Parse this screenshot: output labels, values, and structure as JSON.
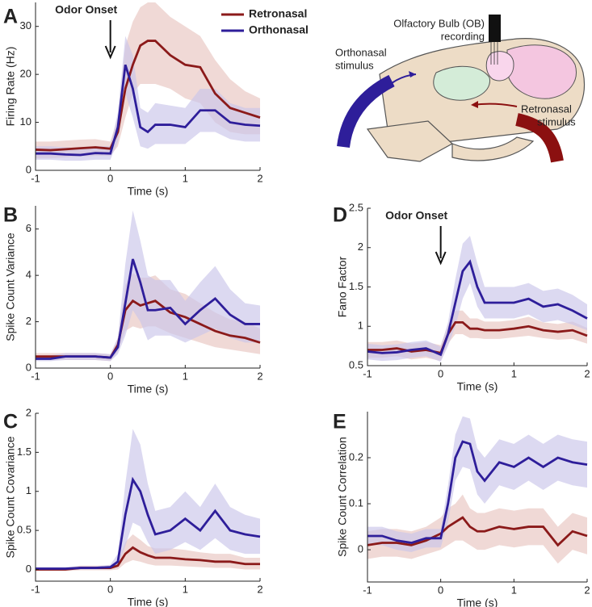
{
  "chart_data": [
    {
      "type": "line",
      "panel_label": "A",
      "ylabel": "Firing Rate (Hz)",
      "xlabel": "Time (s)",
      "legend": "top-right",
      "annotation": {
        "text": "Odor Onset",
        "x": 0
      },
      "x": [
        -1,
        -0.8,
        -0.6,
        -0.4,
        -0.2,
        0,
        0.1,
        0.2,
        0.3,
        0.4,
        0.5,
        0.6,
        0.8,
        1,
        1.2,
        1.4,
        1.6,
        1.8,
        2
      ],
      "xlim": [
        -1,
        2
      ],
      "xticks": [
        -1,
        0,
        1,
        2
      ],
      "ylim": [
        0,
        35
      ],
      "yticks": [
        0,
        10,
        20,
        30
      ],
      "series": [
        {
          "name": "Retronasal",
          "color": "#8b1a1a",
          "band_color": "#e8c4c0",
          "values": [
            4.3,
            4.2,
            4.4,
            4.6,
            4.8,
            4.5,
            8,
            17,
            22,
            26,
            27,
            27,
            24,
            22,
            21.5,
            16,
            13,
            12,
            11
          ],
          "lower": [
            2.5,
            2.5,
            2.7,
            2.9,
            3,
            3,
            5,
            11,
            16,
            18,
            18,
            18,
            17,
            15,
            14,
            10,
            8,
            7.5,
            7.5
          ],
          "upper": [
            6,
            6,
            6.2,
            6.4,
            6.5,
            6,
            11,
            26,
            31,
            34,
            35,
            35,
            32,
            30,
            28,
            23,
            19,
            16.5,
            15
          ]
        },
        {
          "name": "Orthonasal",
          "color": "#2e1e9a",
          "band_color": "#c9c4ea",
          "values": [
            3.5,
            3.5,
            3.3,
            3.2,
            3.6,
            3.5,
            9,
            22,
            17,
            9,
            8,
            9.5,
            9.5,
            9,
            12.5,
            12.5,
            10,
            9.5,
            9.3
          ],
          "lower": [
            2.2,
            2.2,
            2,
            2,
            2.2,
            2.2,
            6,
            16,
            11,
            5,
            4.5,
            5.5,
            5.5,
            5.5,
            8,
            8,
            6.5,
            6,
            6
          ],
          "upper": [
            5,
            5,
            4.8,
            4.6,
            5,
            5,
            12,
            28,
            24,
            13,
            12,
            14,
            13.5,
            13,
            17,
            17,
            14,
            13,
            13
          ]
        }
      ]
    },
    {
      "type": "line",
      "panel_label": "B",
      "ylabel": "Spike Count Variance",
      "xlabel": "Time (s)",
      "x": [
        -1,
        -0.8,
        -0.6,
        -0.4,
        -0.2,
        0,
        0.1,
        0.2,
        0.3,
        0.4,
        0.5,
        0.6,
        0.8,
        1,
        1.2,
        1.4,
        1.6,
        1.8,
        2
      ],
      "xlim": [
        -1,
        2
      ],
      "xticks": [
        -1,
        0,
        1,
        2
      ],
      "ylim": [
        0,
        7
      ],
      "yticks": [
        0,
        2,
        4,
        6
      ],
      "series": [
        {
          "color": "#8b1a1a",
          "band_color": "#e8c4c0",
          "values": [
            0.5,
            0.5,
            0.5,
            0.5,
            0.5,
            0.45,
            1,
            2.5,
            2.9,
            2.7,
            2.8,
            2.9,
            2.4,
            2.2,
            1.9,
            1.6,
            1.4,
            1.3,
            1.1
          ],
          "lower": [
            0.35,
            0.35,
            0.35,
            0.35,
            0.35,
            0.3,
            0.7,
            1.6,
            1.8,
            1.7,
            1.8,
            1.8,
            1.5,
            1.3,
            1.1,
            0.9,
            0.8,
            0.7,
            0.6
          ],
          "upper": [
            0.65,
            0.65,
            0.65,
            0.65,
            0.65,
            0.6,
            1.3,
            3.6,
            4.1,
            3.9,
            3.9,
            4,
            3.4,
            3.2,
            2.8,
            2.4,
            2.1,
            2,
            1.7
          ]
        },
        {
          "color": "#2e1e9a",
          "band_color": "#c9c4ea",
          "values": [
            0.4,
            0.4,
            0.5,
            0.5,
            0.5,
            0.45,
            0.9,
            2.8,
            4.7,
            3.7,
            2.5,
            2.5,
            2.6,
            1.9,
            2.5,
            3,
            2.3,
            1.9,
            1.9
          ],
          "lower": [
            0.3,
            0.3,
            0.35,
            0.35,
            0.35,
            0.3,
            0.6,
            1.4,
            2.5,
            2,
            1.2,
            1.4,
            1.4,
            1.1,
            1.4,
            1.7,
            1.3,
            1.1,
            1.1
          ],
          "upper": [
            0.55,
            0.55,
            0.65,
            0.65,
            0.65,
            0.6,
            1.3,
            4.5,
            6.8,
            5.5,
            4,
            3.8,
            3.8,
            2.9,
            3.7,
            4.4,
            3.4,
            2.8,
            2.7
          ]
        }
      ]
    },
    {
      "type": "line",
      "panel_label": "C",
      "ylabel": "Spike Count Covariance",
      "xlabel": "Time (s)",
      "x": [
        -1,
        -0.8,
        -0.6,
        -0.4,
        -0.2,
        0,
        0.1,
        0.2,
        0.3,
        0.4,
        0.5,
        0.6,
        0.8,
        1,
        1.2,
        1.4,
        1.6,
        1.8,
        2
      ],
      "xlim": [
        -1,
        2
      ],
      "xticks": [
        -1,
        0,
        1,
        2
      ],
      "ylim": [
        -0.15,
        2
      ],
      "yticks": [
        0,
        0.5,
        1,
        1.5,
        2
      ],
      "series": [
        {
          "color": "#8b1a1a",
          "band_color": "#e8c4c0",
          "values": [
            0,
            0,
            0,
            0.02,
            0.02,
            0.02,
            0.05,
            0.2,
            0.28,
            0.22,
            0.18,
            0.15,
            0.15,
            0.13,
            0.12,
            0.1,
            0.1,
            0.07,
            0.07
          ],
          "lower": [
            -0.02,
            -0.02,
            -0.02,
            -0.01,
            -0.01,
            -0.01,
            0,
            0.08,
            0.12,
            0.1,
            0.07,
            0.05,
            0.05,
            0.04,
            0.03,
            0.02,
            0.02,
            0,
            0
          ],
          "upper": [
            0.02,
            0.02,
            0.02,
            0.05,
            0.05,
            0.05,
            0.1,
            0.35,
            0.45,
            0.38,
            0.3,
            0.27,
            0.27,
            0.25,
            0.22,
            0.2,
            0.2,
            0.15,
            0.15
          ]
        },
        {
          "color": "#2e1e9a",
          "band_color": "#c9c4ea",
          "values": [
            0.01,
            0.01,
            0.01,
            0.02,
            0.02,
            0.03,
            0.1,
            0.7,
            1.15,
            1,
            0.7,
            0.45,
            0.5,
            0.65,
            0.5,
            0.75,
            0.5,
            0.45,
            0.42
          ],
          "lower": [
            -0.01,
            -0.01,
            -0.01,
            0,
            0,
            0,
            0.03,
            0.3,
            0.6,
            0.55,
            0.35,
            0.2,
            0.25,
            0.35,
            0.25,
            0.4,
            0.25,
            0.2,
            0.2
          ],
          "upper": [
            0.03,
            0.03,
            0.03,
            0.04,
            0.04,
            0.06,
            0.2,
            1.1,
            1.8,
            1.6,
            1.1,
            0.75,
            0.8,
            1,
            0.8,
            1.1,
            0.8,
            0.7,
            0.65
          ]
        }
      ]
    },
    {
      "type": "line",
      "panel_label": "D",
      "ylabel": "Fano Factor",
      "xlabel": "Time (s)",
      "annotation": {
        "text": "Odor Onset",
        "x": 0
      },
      "x": [
        -1,
        -0.8,
        -0.6,
        -0.4,
        -0.2,
        0,
        0.1,
        0.2,
        0.3,
        0.4,
        0.5,
        0.6,
        0.8,
        1,
        1.2,
        1.4,
        1.6,
        1.8,
        2
      ],
      "xlim": [
        -1,
        2
      ],
      "xticks": [
        -1,
        0,
        1,
        2
      ],
      "ylim": [
        0.5,
        2.5
      ],
      "yticks": [
        0.5,
        1,
        1.5,
        2,
        2.5
      ],
      "series": [
        {
          "color": "#8b1a1a",
          "band_color": "#e8c4c0",
          "values": [
            0.7,
            0.7,
            0.72,
            0.68,
            0.7,
            0.66,
            0.9,
            1.05,
            1.05,
            0.97,
            0.97,
            0.95,
            0.95,
            0.97,
            1,
            0.95,
            0.93,
            0.95,
            0.88
          ],
          "lower": [
            0.6,
            0.6,
            0.62,
            0.58,
            0.6,
            0.56,
            0.78,
            0.9,
            0.9,
            0.85,
            0.85,
            0.84,
            0.84,
            0.86,
            0.88,
            0.85,
            0.83,
            0.84,
            0.78
          ],
          "upper": [
            0.8,
            0.8,
            0.82,
            0.78,
            0.8,
            0.76,
            1.02,
            1.2,
            1.2,
            1.1,
            1.1,
            1.06,
            1.06,
            1.08,
            1.12,
            1.05,
            1.03,
            1.06,
            0.98
          ]
        },
        {
          "color": "#2e1e9a",
          "band_color": "#c9c4ea",
          "values": [
            0.68,
            0.66,
            0.67,
            0.7,
            0.72,
            0.64,
            0.9,
            1.3,
            1.7,
            1.82,
            1.5,
            1.3,
            1.3,
            1.3,
            1.35,
            1.25,
            1.28,
            1.2,
            1.1
          ],
          "lower": [
            0.58,
            0.56,
            0.57,
            0.6,
            0.62,
            0.55,
            0.75,
            1,
            1.35,
            1.55,
            1.25,
            1.1,
            1.1,
            1.1,
            1.15,
            1.05,
            1.08,
            1.02,
            0.95
          ],
          "upper": [
            0.78,
            0.76,
            0.77,
            0.8,
            0.82,
            0.74,
            1.05,
            1.6,
            2.05,
            2.15,
            1.8,
            1.5,
            1.5,
            1.5,
            1.55,
            1.45,
            1.48,
            1.4,
            1.28
          ]
        }
      ]
    },
    {
      "type": "line",
      "panel_label": "E",
      "ylabel": "Spike Count Correlation",
      "xlabel": "Time (s)",
      "x": [
        -1,
        -0.8,
        -0.6,
        -0.4,
        -0.2,
        0,
        0.1,
        0.2,
        0.3,
        0.4,
        0.5,
        0.6,
        0.8,
        1,
        1.2,
        1.4,
        1.6,
        1.8,
        2
      ],
      "xlim": [
        -1,
        2
      ],
      "xticks": [
        -1,
        0,
        1,
        2
      ],
      "ylim": [
        -0.07,
        0.3
      ],
      "yticks": [
        0,
        0.1,
        0.2
      ],
      "series": [
        {
          "color": "#8b1a1a",
          "band_color": "#e8c4c0",
          "values": [
            0.01,
            0.015,
            0.015,
            0.01,
            0.02,
            0.035,
            0.05,
            0.06,
            0.07,
            0.05,
            0.04,
            0.04,
            0.05,
            0.045,
            0.05,
            0.05,
            0.01,
            0.04,
            0.03
          ],
          "lower": [
            -0.02,
            -0.015,
            -0.015,
            -0.02,
            -0.01,
            0,
            0.01,
            0.02,
            0.02,
            0.01,
            0,
            0,
            0.01,
            0.005,
            0.01,
            0.01,
            -0.03,
            0,
            -0.01
          ],
          "upper": [
            0.04,
            0.045,
            0.045,
            0.04,
            0.05,
            0.07,
            0.09,
            0.1,
            0.12,
            0.09,
            0.08,
            0.08,
            0.09,
            0.085,
            0.09,
            0.09,
            0.05,
            0.08,
            0.07
          ]
        },
        {
          "color": "#2e1e9a",
          "band_color": "#c9c4ea",
          "values": [
            0.03,
            0.03,
            0.02,
            0.015,
            0.025,
            0.025,
            0.1,
            0.2,
            0.235,
            0.23,
            0.17,
            0.15,
            0.19,
            0.18,
            0.2,
            0.18,
            0.2,
            0.19,
            0.185
          ],
          "lower": [
            0.01,
            0.01,
            0,
            -0.005,
            0.005,
            0.005,
            0.06,
            0.15,
            0.18,
            0.175,
            0.12,
            0.1,
            0.14,
            0.13,
            0.15,
            0.13,
            0.15,
            0.14,
            0.135
          ],
          "upper": [
            0.05,
            0.05,
            0.04,
            0.035,
            0.045,
            0.045,
            0.14,
            0.25,
            0.29,
            0.285,
            0.22,
            0.2,
            0.24,
            0.23,
            0.25,
            0.23,
            0.25,
            0.24,
            0.235
          ]
        }
      ]
    }
  ],
  "diagram": {
    "recording_line1": "Olfactory Bulb (OB)",
    "recording_line2": "recording",
    "ortho_line1": "Orthonasal",
    "ortho_line2": "stimulus",
    "retro_line1": "Retronasal",
    "retro_line2": "stimulus"
  }
}
